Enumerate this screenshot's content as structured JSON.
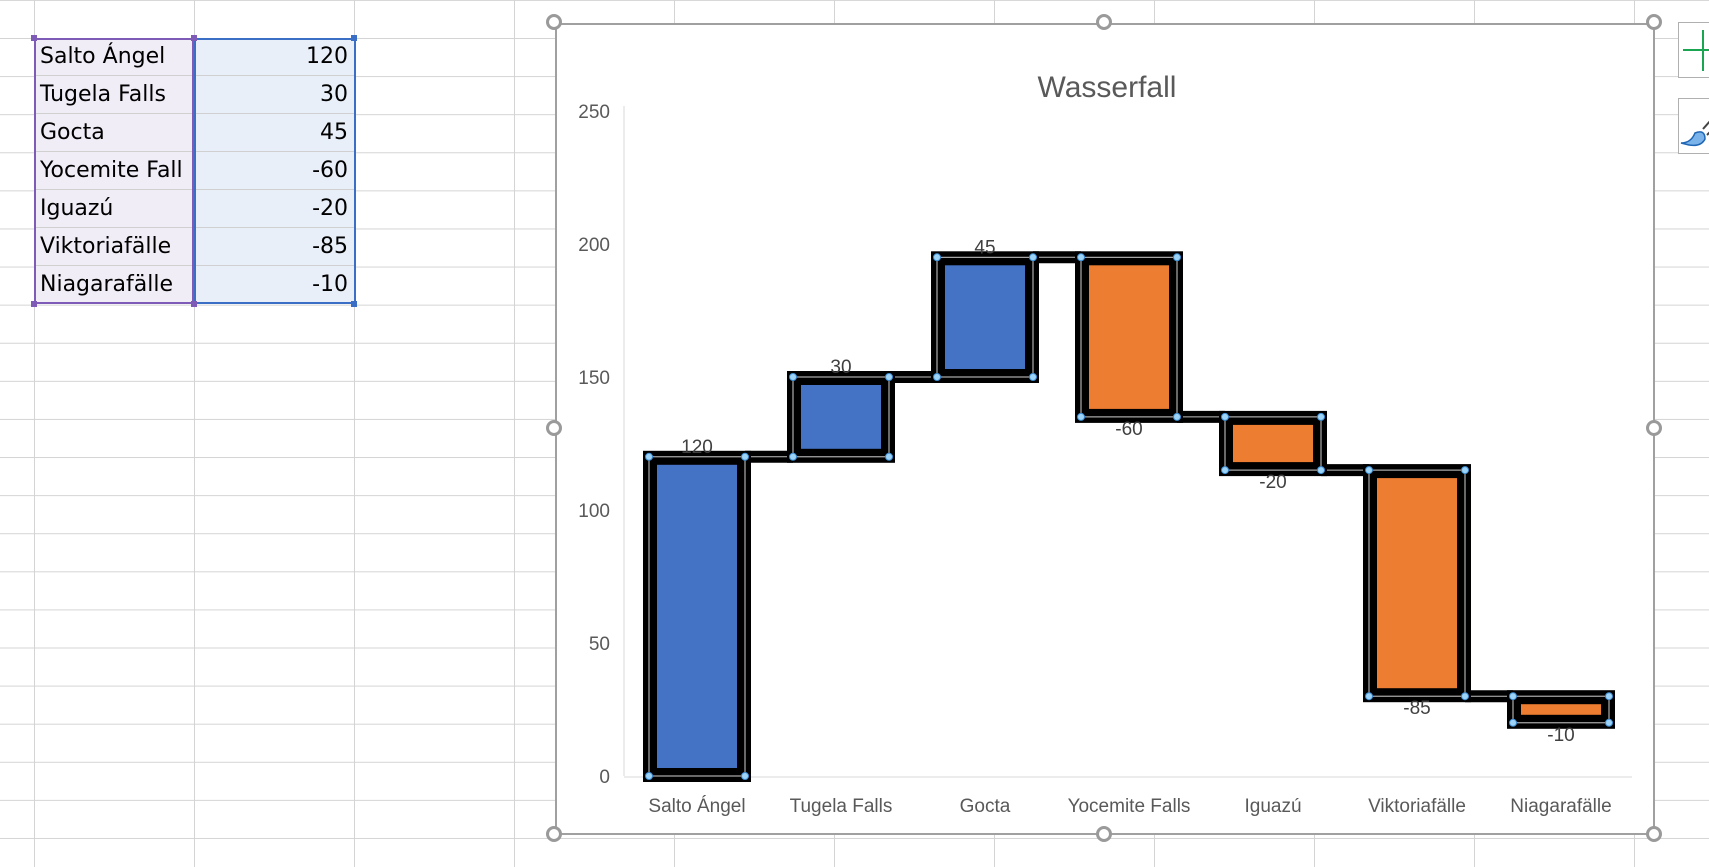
{
  "sheet": {
    "rows": [
      {
        "label": "Salto Ángel",
        "value": "120"
      },
      {
        "label": "Tugela Falls",
        "value": "30"
      },
      {
        "label": "Gocta",
        "value": "45"
      },
      {
        "label": "Yocemite Fall",
        "value": "-60"
      },
      {
        "label": "Iguazú",
        "value": "-20"
      },
      {
        "label": "Viktoriafälle",
        "value": "-85"
      },
      {
        "label": "Niagarafälle",
        "value": "-10"
      }
    ]
  },
  "side_buttons": {
    "add_icon": "plus-icon",
    "style_icon": "paintbrush-icon"
  },
  "chart_data": {
    "type": "waterfall",
    "title": "Wasserfall",
    "categories": [
      "Salto Ángel",
      "Tugela Falls",
      "Gocta",
      "Yocemite Falls",
      "Iguazú",
      "Viktoriafälle",
      "Niagarafälle"
    ],
    "values": [
      120,
      30,
      45,
      -60,
      -20,
      -85,
      -10
    ],
    "data_labels": [
      "120",
      "30",
      "45",
      "-60",
      "-20",
      "-85",
      "-10"
    ],
    "yticks": [
      "0",
      "50",
      "100",
      "150",
      "200",
      "250"
    ],
    "ylim": [
      0,
      250
    ],
    "grid": false,
    "legend": "none",
    "colors": {
      "increase": "#4472c4",
      "decrease": "#ed7d31",
      "outline": "#000000"
    }
  }
}
